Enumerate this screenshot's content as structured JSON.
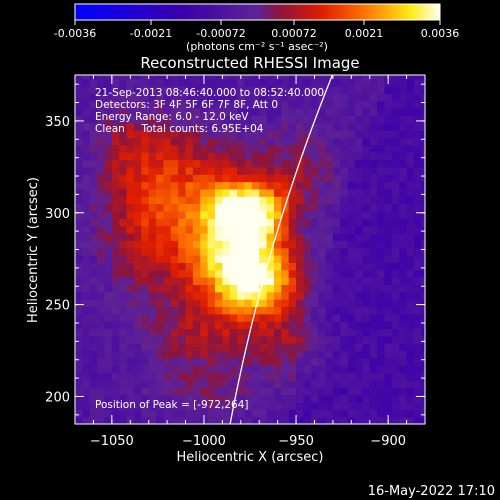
{
  "chart_data": {
    "type": "heatmap",
    "title": "Reconstructed RHESSI Image",
    "xlabel": "Heliocentric X (arcsec)",
    "ylabel": "Heliocentric Y (arcsec)",
    "xlim": [
      -1070,
      -880
    ],
    "ylim": [
      185,
      375
    ],
    "x_ticks": [
      -1050,
      -1000,
      -950,
      -900
    ],
    "y_ticks": [
      200,
      250,
      300,
      350
    ],
    "colorbar": {
      "label": "(photons cm⁻² s⁻¹ asec⁻²)",
      "range": [
        -0.0036,
        0.0036
      ],
      "tick_values": [
        -0.0036,
        -0.0021,
        -0.00072,
        0.00072,
        0.0021,
        0.0036
      ],
      "tick_labels": [
        "-0.0036",
        "-0.0021",
        "-0.00072",
        "0.00072",
        "0.0021",
        "0.0036"
      ]
    },
    "annotations": [
      "21-Sep-2013 08:46:40.000 to 08:52:40.000",
      "Detectors: 3F 4F 5F 6F 7F 8F, Att 0",
      "Energy Range: 6.0 - 12.0 keV",
      "Clean     Total counts: 6.95E+04"
    ],
    "peak_label": "Position of Peak = [-972,264]",
    "peak": [
      -972,
      264
    ],
    "limb": {
      "radius_arcsec": 1003,
      "center": [
        0,
        0
      ]
    },
    "sources": [
      {
        "x": -975,
        "y": 300,
        "amp": 0.0036,
        "sx": 14,
        "sy": 12
      },
      {
        "x": -972,
        "y": 264,
        "amp": 0.0036,
        "sx": 17,
        "sy": 14
      },
      {
        "x": -990,
        "y": 282,
        "amp": 0.0022,
        "sx": 20,
        "sy": 22
      },
      {
        "x": -1010,
        "y": 318,
        "amp": 0.0014,
        "sx": 25,
        "sy": 22
      },
      {
        "x": -1032,
        "y": 292,
        "amp": 0.0012,
        "sx": 18,
        "sy": 28
      },
      {
        "x": -1000,
        "y": 232,
        "amp": 0.0011,
        "sx": 22,
        "sy": 15
      },
      {
        "x": -948,
        "y": 325,
        "amp": 0.0009,
        "sx": 15,
        "sy": 18
      },
      {
        "x": -952,
        "y": 228,
        "amp": 0.0009,
        "sx": 15,
        "sy": 14
      },
      {
        "x": -1040,
        "y": 340,
        "amp": 0.0008,
        "sx": 14,
        "sy": 14
      },
      {
        "x": -1000,
        "y": 200,
        "amp": 0.0006,
        "sx": 20,
        "sy": 10
      }
    ]
  },
  "footer": {
    "timestamp": "16-May-2022 17:10"
  }
}
